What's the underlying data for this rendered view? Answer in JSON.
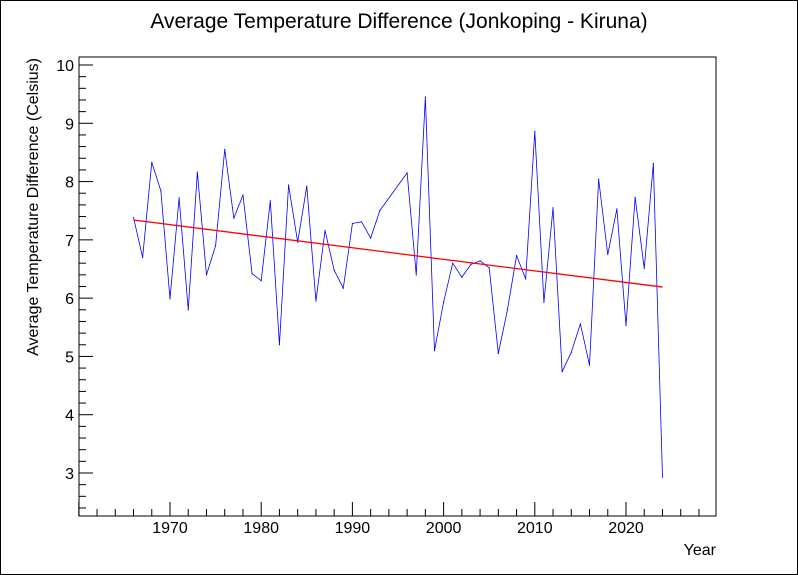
{
  "chart_data": {
    "type": "line",
    "title": "Average Temperature Difference (Jonkoping - Kiruna)",
    "xlabel": "Year",
    "ylabel": "Average Temperature Difference (Celsius)",
    "xlim": [
      1960,
      2020
    ],
    "ylim": [
      2.25,
      10.1
    ],
    "x_tick_labels": [
      1970,
      1980,
      1990,
      2000,
      2010,
      2020
    ],
    "y_tick_labels": [
      3,
      4,
      5,
      6,
      7,
      8,
      9,
      10
    ],
    "grid": false,
    "legend": "none",
    "series": [
      {
        "color": "#0000ff",
        "points": [
          [
            1966,
            7.38
          ],
          [
            1967,
            6.7
          ],
          [
            1968,
            8.33
          ],
          [
            1969,
            7.84
          ],
          [
            1970,
            5.99
          ],
          [
            1971,
            7.72
          ],
          [
            1972,
            5.8
          ],
          [
            1973,
            8.16
          ],
          [
            1974,
            6.4
          ],
          [
            1975,
            6.9
          ],
          [
            1976,
            8.55
          ],
          [
            1977,
            7.37
          ],
          [
            1978,
            7.77
          ],
          [
            1979,
            6.42
          ],
          [
            1980,
            6.3
          ],
          [
            1981,
            7.67
          ],
          [
            1982,
            5.2
          ],
          [
            1983,
            7.94
          ],
          [
            1984,
            6.96
          ],
          [
            1985,
            7.92
          ],
          [
            1986,
            5.95
          ],
          [
            1987,
            7.16
          ],
          [
            1988,
            6.48
          ],
          [
            1989,
            6.17
          ],
          [
            1990,
            7.28
          ],
          [
            1991,
            7.31
          ],
          [
            1992,
            7.03
          ],
          [
            1993,
            7.5
          ],
          [
            1996,
            8.15
          ],
          [
            1997,
            6.4
          ],
          [
            1998,
            9.45
          ],
          [
            1999,
            5.1
          ],
          [
            2000,
            5.93
          ],
          [
            2001,
            6.6
          ],
          [
            2002,
            6.36
          ],
          [
            2003,
            6.58
          ],
          [
            2004,
            6.64
          ],
          [
            2005,
            6.52
          ],
          [
            2006,
            5.05
          ],
          [
            2007,
            5.8
          ],
          [
            2008,
            6.73
          ],
          [
            2009,
            6.33
          ],
          [
            2010,
            8.86
          ],
          [
            2011,
            5.93
          ],
          [
            2012,
            7.55
          ],
          [
            2013,
            4.74
          ],
          [
            2014,
            5.07
          ],
          [
            2015,
            5.56
          ],
          [
            2016,
            4.85
          ],
          [
            2017,
            8.04
          ],
          [
            2018,
            6.75
          ],
          [
            2019,
            7.53
          ],
          [
            2020,
            5.53
          ],
          [
            2021,
            7.73
          ],
          [
            2022,
            6.51
          ],
          [
            2023,
            8.31
          ],
          [
            2024,
            2.93
          ]
        ]
      },
      {
        "color": "#ff0000",
        "points": [
          [
            1966,
            7.34
          ],
          [
            2024,
            6.19
          ]
        ]
      }
    ]
  }
}
